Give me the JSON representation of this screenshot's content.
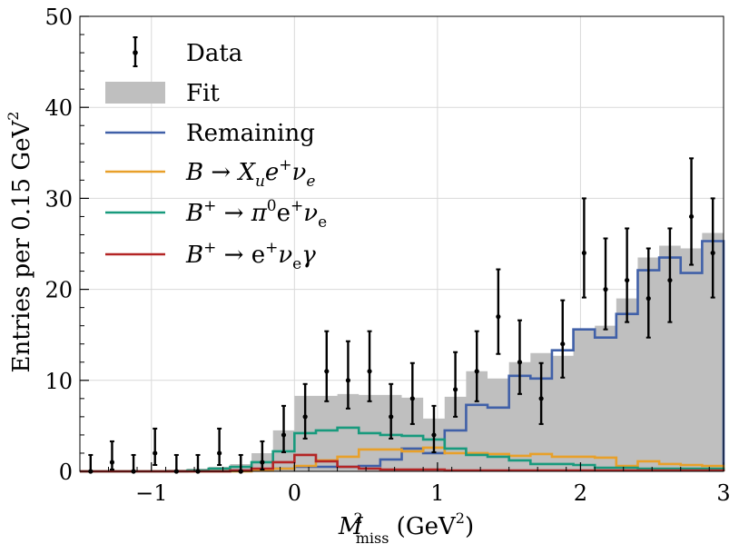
{
  "chart_data": {
    "type": "histogram",
    "xlabel": {
      "main": "M",
      "sup": "2",
      "sub": "miss",
      "unit": " (GeV",
      "unit_sup": "2",
      "unit_close": ")"
    },
    "ylabel": {
      "main": "Entries per 0.15 GeV",
      "sup": "2"
    },
    "xlim": [
      -1.5,
      3.0
    ],
    "ylim": [
      0,
      50
    ],
    "x_ticks": [
      -1,
      0,
      1,
      2,
      3
    ],
    "x_tick_labels": [
      "−1",
      "0",
      "1",
      "2",
      "3"
    ],
    "y_ticks": [
      0,
      10,
      20,
      30,
      40,
      50
    ],
    "y_tick_labels": [
      "0",
      "10",
      "20",
      "30",
      "40",
      "50"
    ],
    "grid": true,
    "legend_position": "top-left",
    "bin_edges": [
      -1.5,
      -1.35,
      -1.2,
      -1.05,
      -0.9,
      -0.75,
      -0.6,
      -0.45,
      -0.3,
      -0.15,
      0.0,
      0.15,
      0.3,
      0.45,
      0.6,
      0.75,
      0.9,
      1.05,
      1.2,
      1.35,
      1.5,
      1.65,
      1.8,
      1.95,
      2.1,
      2.25,
      2.4,
      2.55,
      2.7,
      2.85,
      3.0
    ],
    "series": [
      {
        "name": "Fit",
        "kind": "filled",
        "color": "#bfbfbf",
        "values": [
          0.1,
          0.1,
          0.1,
          0.1,
          0.2,
          0.3,
          0.5,
          0.8,
          2.0,
          4.5,
          8.3,
          8.3,
          8.5,
          8.4,
          8.4,
          8.1,
          5.8,
          8.2,
          11.0,
          10.2,
          12.0,
          13.0,
          12.7,
          15.7,
          16.0,
          19.0,
          23.5,
          24.8,
          24.5,
          26.2
        ]
      },
      {
        "name": "Remaining",
        "kind": "step",
        "color": "#4060a8",
        "values": [
          0.0,
          0.0,
          0.0,
          0.0,
          0.0,
          0.0,
          0.0,
          0.1,
          0.2,
          0.3,
          0.5,
          0.5,
          0.5,
          0.6,
          1.3,
          2.5,
          2.0,
          4.5,
          7.3,
          7.0,
          10.5,
          10.2,
          13.3,
          15.6,
          14.7,
          17.3,
          22.1,
          23.5,
          21.8,
          25.3
        ]
      },
      {
        "name": "B → X_u e⁺ν_e",
        "kind": "step",
        "color": "#e8a02a",
        "values": [
          0.0,
          0.0,
          0.0,
          0.0,
          0.0,
          0.0,
          0.0,
          0.0,
          0.1,
          0.3,
          0.6,
          1.2,
          1.6,
          2.4,
          2.4,
          2.2,
          2.6,
          2.0,
          2.0,
          1.9,
          1.7,
          1.9,
          1.6,
          1.6,
          1.5,
          0.6,
          1.1,
          0.8,
          0.7,
          0.6
        ]
      },
      {
        "name": "B⁺ → π⁰e⁺ν_e",
        "kind": "step",
        "color": "#189a7d",
        "values": [
          0.0,
          0.0,
          0.0,
          0.0,
          0.0,
          0.1,
          0.3,
          0.5,
          1.0,
          2.2,
          4.2,
          4.5,
          4.8,
          4.2,
          4.0,
          3.9,
          3.5,
          2.5,
          1.8,
          1.6,
          1.2,
          0.8,
          0.8,
          0.7,
          0.4,
          0.4,
          0.3,
          0.3,
          0.3,
          0.3
        ]
      },
      {
        "name": "B⁺ → e⁺ν_eγ",
        "kind": "step",
        "color": "#b42525",
        "values": [
          0.0,
          0.0,
          0.0,
          0.0,
          0.0,
          0.0,
          0.0,
          0.1,
          0.3,
          1.0,
          1.8,
          1.1,
          0.5,
          0.3,
          0.2,
          0.2,
          0.2,
          0.1,
          0.1,
          0.1,
          0.1,
          0.1,
          0.1,
          0.1,
          0.1,
          0.1,
          0.1,
          0.1,
          0.1,
          0.1
        ]
      },
      {
        "name": "Data",
        "kind": "errorbar",
        "color": "#000000",
        "x": [
          -1.425,
          -1.275,
          -1.125,
          -0.975,
          -0.825,
          -0.675,
          -0.525,
          -0.375,
          -0.225,
          -0.075,
          0.075,
          0.225,
          0.375,
          0.525,
          0.675,
          0.825,
          0.975,
          1.125,
          1.275,
          1.425,
          1.575,
          1.725,
          1.875,
          2.025,
          2.175,
          2.325,
          2.475,
          2.625,
          2.775,
          2.925
        ],
        "y": [
          0,
          1,
          0,
          2,
          0,
          0,
          2,
          0,
          1,
          4,
          6,
          11,
          10,
          11,
          6,
          8,
          4,
          9,
          11,
          17,
          12,
          8,
          14,
          24,
          20,
          21,
          19,
          21,
          28,
          24
        ],
        "yerr_up": [
          1.8,
          2.3,
          1.8,
          2.7,
          1.8,
          1.8,
          2.7,
          1.8,
          2.3,
          3.2,
          3.6,
          4.4,
          4.3,
          4.4,
          3.6,
          3.9,
          3.2,
          4.1,
          4.4,
          5.2,
          4.6,
          3.9,
          4.8,
          6.0,
          5.6,
          5.7,
          5.5,
          5.7,
          6.4,
          6.0
        ],
        "yerr_down": [
          0.0,
          0.8,
          0.0,
          1.3,
          0.0,
          0.0,
          1.3,
          0.0,
          0.8,
          1.9,
          2.4,
          3.3,
          3.1,
          3.3,
          2.4,
          2.8,
          1.9,
          3.0,
          3.3,
          4.1,
          3.5,
          2.8,
          3.7,
          4.9,
          4.4,
          4.6,
          4.3,
          4.6,
          5.3,
          4.9
        ]
      }
    ],
    "legend": [
      {
        "kind": "errorbar",
        "color": "#000000",
        "label": "Data"
      },
      {
        "kind": "patch",
        "color": "#bfbfbf",
        "label": "Fit"
      },
      {
        "kind": "line",
        "color": "#4060a8",
        "label": "Remaining"
      },
      {
        "kind": "line",
        "color": "#e8a02a",
        "parts": [
          [
            "B",
            "i"
          ],
          [
            " → ",
            ""
          ],
          [
            "X",
            "i"
          ],
          [
            "u",
            "sub-i"
          ],
          [
            "e",
            "i"
          ],
          [
            "+",
            "sup"
          ],
          [
            "ν",
            "i"
          ],
          [
            "e",
            "sub-i"
          ]
        ]
      },
      {
        "kind": "line",
        "color": "#189a7d",
        "parts": [
          [
            "B",
            "i"
          ],
          [
            "+",
            "sup"
          ],
          [
            " → ",
            ""
          ],
          [
            "π",
            "i"
          ],
          [
            "0",
            "sup"
          ],
          [
            "e",
            ""
          ],
          [
            "+",
            "sup"
          ],
          [
            "ν",
            "i"
          ],
          [
            "e",
            "sub"
          ]
        ]
      },
      {
        "kind": "line",
        "color": "#b42525",
        "parts": [
          [
            "B",
            "i"
          ],
          [
            "+",
            "sup"
          ],
          [
            " → ",
            ""
          ],
          [
            "e",
            ""
          ],
          [
            "+",
            "sup"
          ],
          [
            "ν",
            "i"
          ],
          [
            "e",
            "sub"
          ],
          [
            "γ",
            "i"
          ]
        ]
      }
    ]
  }
}
